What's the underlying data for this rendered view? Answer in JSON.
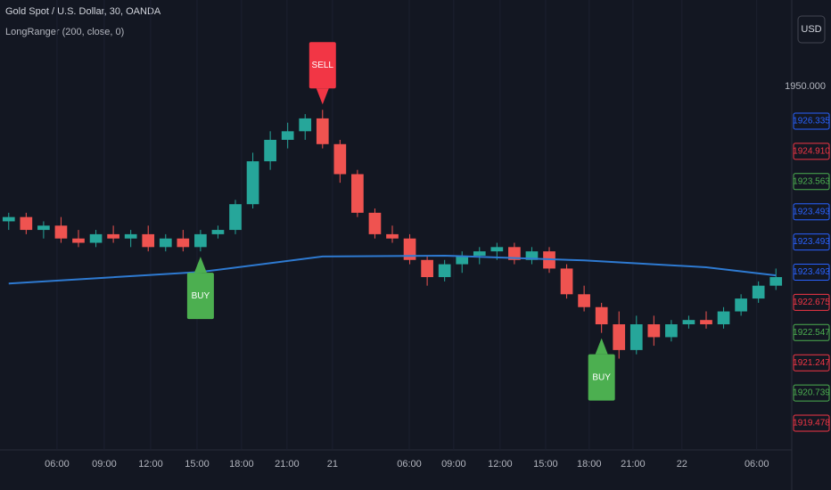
{
  "chart_data": {
    "type": "candlestick",
    "title": "Gold Spot / U.S. Dollar, 30, OANDA",
    "subtitle": "LongRanger (200, close, 0)",
    "currency": "USD",
    "price_scale_mark": "1950.000",
    "up_color": "#26a69a",
    "down_color": "#ef5350",
    "x": [
      0,
      1,
      2,
      3,
      4,
      5,
      6,
      7,
      8,
      9,
      10,
      11,
      12,
      13,
      14,
      15,
      16,
      17,
      18,
      19,
      20,
      21,
      22,
      23,
      24,
      25,
      26,
      27,
      28,
      29,
      30,
      31,
      32,
      33,
      34,
      35,
      36,
      37,
      38,
      39,
      40,
      41,
      42,
      43,
      44
    ],
    "open": [
      1924.0,
      1924.1,
      1923.8,
      1923.9,
      1923.6,
      1923.5,
      1923.7,
      1923.6,
      1923.7,
      1923.4,
      1923.6,
      1923.4,
      1923.7,
      1923.8,
      1924.4,
      1925.4,
      1925.9,
      1926.1,
      1926.4,
      1925.8,
      1925.1,
      1924.2,
      1923.7,
      1923.6,
      1923.1,
      1922.7,
      1923.0,
      1923.2,
      1923.3,
      1923.4,
      1923.1,
      1923.3,
      1922.9,
      1922.3,
      1922.0,
      1921.6,
      1921.0,
      1921.6,
      1921.3,
      1921.6,
      1921.7,
      1921.6,
      1921.9,
      1922.2,
      1922.5
    ],
    "high": [
      1924.2,
      1924.2,
      1924.0,
      1924.1,
      1923.8,
      1923.8,
      1923.9,
      1923.8,
      1923.9,
      1923.7,
      1923.8,
      1923.8,
      1923.9,
      1924.5,
      1925.6,
      1926.1,
      1926.3,
      1926.5,
      1926.6,
      1925.9,
      1925.2,
      1924.3,
      1923.9,
      1923.7,
      1923.2,
      1923.1,
      1923.3,
      1923.4,
      1923.5,
      1923.5,
      1923.4,
      1923.4,
      1923.0,
      1922.5,
      1922.1,
      1921.9,
      1921.8,
      1921.8,
      1921.7,
      1921.8,
      1921.9,
      1922.0,
      1922.3,
      1922.6,
      1922.9
    ],
    "low": [
      1923.8,
      1923.7,
      1923.6,
      1923.5,
      1923.4,
      1923.4,
      1923.5,
      1923.4,
      1923.3,
      1923.3,
      1923.3,
      1923.3,
      1923.6,
      1923.7,
      1924.3,
      1925.2,
      1925.7,
      1925.9,
      1925.7,
      1924.9,
      1924.1,
      1923.6,
      1923.5,
      1923.0,
      1922.5,
      1922.6,
      1922.8,
      1923.0,
      1923.1,
      1923.0,
      1923.0,
      1922.8,
      1922.2,
      1921.9,
      1921.4,
      1920.8,
      1920.9,
      1921.1,
      1921.2,
      1921.5,
      1921.5,
      1921.5,
      1921.8,
      1922.1,
      1922.4
    ],
    "close": [
      1924.1,
      1923.8,
      1923.9,
      1923.6,
      1923.5,
      1923.7,
      1923.6,
      1923.7,
      1923.4,
      1923.6,
      1923.4,
      1923.7,
      1923.8,
      1924.4,
      1925.4,
      1925.9,
      1926.1,
      1926.4,
      1925.8,
      1925.1,
      1924.2,
      1923.7,
      1923.6,
      1923.1,
      1922.7,
      1923.0,
      1923.2,
      1923.3,
      1923.4,
      1923.1,
      1923.3,
      1922.9,
      1922.3,
      1922.0,
      1921.6,
      1921.0,
      1921.6,
      1921.3,
      1921.6,
      1921.7,
      1921.6,
      1921.9,
      1922.2,
      1922.5,
      1922.7
    ],
    "ma": {
      "color": "#2e7ad1",
      "x": [
        0,
        11,
        18,
        25,
        33,
        40,
        44
      ],
      "values": [
        1922.55,
        1922.82,
        1923.18,
        1923.2,
        1923.09,
        1922.93,
        1922.74
      ]
    },
    "signals": [
      {
        "label": "SELL",
        "x": 18,
        "color": "#f23645"
      },
      {
        "label": "BUY",
        "x": 11,
        "color": "#4caf50"
      },
      {
        "label": "BUY",
        "x": 34,
        "color": "#4caf50"
      }
    ],
    "xlim": [
      -0.5,
      44.5
    ],
    "ylim": [
      1918.36,
      1929.16
    ],
    "xticks": [
      {
        "value": 2.77,
        "label": "06:00"
      },
      {
        "value": 5.48,
        "label": "09:00"
      },
      {
        "value": 8.14,
        "label": "12:00"
      },
      {
        "value": 10.8,
        "label": "15:00"
      },
      {
        "value": 13.35,
        "label": "18:00"
      },
      {
        "value": 15.96,
        "label": "21:00"
      },
      {
        "value": 18.57,
        "label": "21"
      },
      {
        "value": 22.97,
        "label": "06:00"
      },
      {
        "value": 25.52,
        "label": "09:00"
      },
      {
        "value": 28.18,
        "label": "12:00"
      },
      {
        "value": 30.79,
        "label": "15:00"
      },
      {
        "value": 33.29,
        "label": "18:00"
      },
      {
        "value": 35.8,
        "label": "21:00"
      },
      {
        "value": 38.61,
        "label": "22"
      },
      {
        "value": 42.9,
        "label": "06:00"
      }
    ],
    "price_tags": [
      {
        "value": 1926.335,
        "color": "#2962ff"
      },
      {
        "value": 1924.91,
        "label": "1924.910",
        "color": "#f23645"
      },
      {
        "value": 1923.563,
        "color": "#4caf50"
      },
      {
        "value": 1923.493,
        "color": "#2962ff"
      },
      {
        "value": 1923.493,
        "color": "#2962ff"
      },
      {
        "value": 1923.493,
        "color": "#2962ff"
      },
      {
        "value": 1922.675,
        "color": "#f23645"
      },
      {
        "value": 1922.547,
        "color": "#4caf50"
      },
      {
        "value": 1921.247,
        "color": "#f23645"
      },
      {
        "value": 1920.739,
        "color": "#4caf50"
      },
      {
        "value": 1919.478,
        "color": "#f23645"
      }
    ]
  }
}
